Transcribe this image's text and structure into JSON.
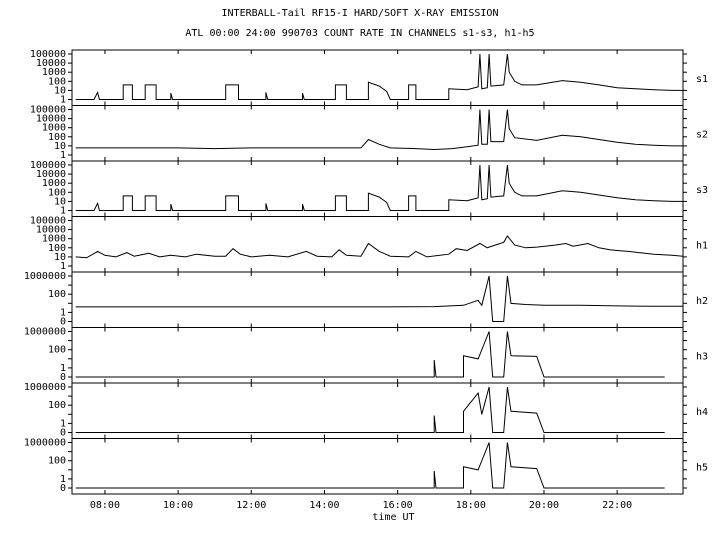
{
  "chart_data": {
    "type": "line",
    "title": "INTERBALL-Tail RF15-I HARD/SOFT X-RAY EMISSION",
    "subtitle": "ATL 00:00 24:00 990703  COUNT RATE IN CHANNELS s1-s3, h1-h5",
    "xlabel": "time UT",
    "x_ticks": [
      "08:00",
      "10:00",
      "12:00",
      "14:00",
      "16:00",
      "18:00",
      "20:00",
      "22:00"
    ],
    "xlim_hours": [
      7.1,
      23.8
    ],
    "scale": "log",
    "panels": [
      {
        "name": "s1",
        "y_ticks": [
          "100000",
          "10000",
          "1000",
          "100",
          "10",
          "1"
        ],
        "series": [
          [
            7.2,
            1
          ],
          [
            7.7,
            1
          ],
          [
            7.8,
            6
          ],
          [
            7.85,
            1
          ],
          [
            8.5,
            1
          ],
          [
            8.5,
            40
          ],
          [
            8.75,
            40
          ],
          [
            8.75,
            1
          ],
          [
            9.1,
            1
          ],
          [
            9.1,
            40
          ],
          [
            9.4,
            40
          ],
          [
            9.4,
            1
          ],
          [
            9.8,
            1
          ],
          [
            9.8,
            5
          ],
          [
            9.85,
            1
          ],
          [
            11.3,
            1
          ],
          [
            11.3,
            40
          ],
          [
            11.65,
            40
          ],
          [
            11.65,
            1
          ],
          [
            12.4,
            1
          ],
          [
            12.4,
            6
          ],
          [
            12.45,
            1
          ],
          [
            13.4,
            1
          ],
          [
            13.4,
            5
          ],
          [
            13.45,
            1
          ],
          [
            14.3,
            1
          ],
          [
            14.3,
            40
          ],
          [
            14.6,
            40
          ],
          [
            14.6,
            1
          ],
          [
            15.2,
            1
          ],
          [
            15.2,
            80
          ],
          [
            15.5,
            30
          ],
          [
            15.7,
            8
          ],
          [
            15.8,
            1
          ],
          [
            16.3,
            1
          ],
          [
            16.3,
            40
          ],
          [
            16.5,
            40
          ],
          [
            16.5,
            1
          ],
          [
            17.4,
            1
          ],
          [
            17.4,
            15
          ],
          [
            17.9,
            12
          ],
          [
            18.2,
            25
          ],
          [
            18.25,
            100000
          ],
          [
            18.3,
            15
          ],
          [
            18.45,
            20
          ],
          [
            18.5,
            100000
          ],
          [
            18.55,
            30
          ],
          [
            18.9,
            40
          ],
          [
            19.0,
            100000
          ],
          [
            19.05,
            1000
          ],
          [
            19.2,
            100
          ],
          [
            19.4,
            40
          ],
          [
            19.8,
            40
          ],
          [
            20.5,
            120
          ],
          [
            21.0,
            80
          ],
          [
            21.5,
            40
          ],
          [
            22.0,
            20
          ],
          [
            22.5,
            15
          ],
          [
            23.0,
            12
          ],
          [
            23.5,
            10
          ],
          [
            23.8,
            10
          ]
        ]
      },
      {
        "name": "s2",
        "y_ticks": [
          "100000",
          "10000",
          "1000",
          "100",
          "10",
          "1"
        ],
        "series": [
          [
            7.2,
            6
          ],
          [
            8.0,
            6
          ],
          [
            9.0,
            6
          ],
          [
            10.0,
            6
          ],
          [
            11.0,
            5
          ],
          [
            12.0,
            6
          ],
          [
            13.0,
            6
          ],
          [
            14.0,
            6
          ],
          [
            15.0,
            6
          ],
          [
            15.2,
            50
          ],
          [
            15.5,
            15
          ],
          [
            15.8,
            6
          ],
          [
            16.5,
            5
          ],
          [
            17.0,
            4
          ],
          [
            17.5,
            5
          ],
          [
            17.9,
            8
          ],
          [
            18.2,
            12
          ],
          [
            18.25,
            100000
          ],
          [
            18.3,
            15
          ],
          [
            18.45,
            15
          ],
          [
            18.5,
            100000
          ],
          [
            18.55,
            30
          ],
          [
            18.9,
            30
          ],
          [
            19.0,
            100000
          ],
          [
            19.05,
            800
          ],
          [
            19.2,
            80
          ],
          [
            19.8,
            40
          ],
          [
            20.5,
            150
          ],
          [
            21.0,
            100
          ],
          [
            21.5,
            50
          ],
          [
            22.0,
            25
          ],
          [
            22.5,
            15
          ],
          [
            23.0,
            12
          ],
          [
            23.5,
            10
          ],
          [
            23.8,
            10
          ]
        ]
      },
      {
        "name": "s3",
        "y_ticks": [
          "100000",
          "10000",
          "1000",
          "100",
          "10",
          "1"
        ],
        "series": [
          [
            7.2,
            1
          ],
          [
            7.7,
            1
          ],
          [
            7.8,
            6
          ],
          [
            7.85,
            1
          ],
          [
            8.5,
            1
          ],
          [
            8.5,
            40
          ],
          [
            8.75,
            40
          ],
          [
            8.75,
            1
          ],
          [
            9.1,
            1
          ],
          [
            9.1,
            40
          ],
          [
            9.4,
            40
          ],
          [
            9.4,
            1
          ],
          [
            9.8,
            1
          ],
          [
            9.8,
            5
          ],
          [
            9.85,
            1
          ],
          [
            11.3,
            1
          ],
          [
            11.3,
            40
          ],
          [
            11.65,
            40
          ],
          [
            11.65,
            1
          ],
          [
            12.4,
            1
          ],
          [
            12.4,
            6
          ],
          [
            12.45,
            1
          ],
          [
            13.4,
            1
          ],
          [
            13.4,
            5
          ],
          [
            13.45,
            1
          ],
          [
            14.3,
            1
          ],
          [
            14.3,
            40
          ],
          [
            14.6,
            40
          ],
          [
            14.6,
            1
          ],
          [
            15.2,
            1
          ],
          [
            15.2,
            80
          ],
          [
            15.5,
            30
          ],
          [
            15.7,
            8
          ],
          [
            15.8,
            1
          ],
          [
            16.3,
            1
          ],
          [
            16.3,
            40
          ],
          [
            16.5,
            40
          ],
          [
            16.5,
            1
          ],
          [
            17.4,
            1
          ],
          [
            17.4,
            15
          ],
          [
            17.9,
            12
          ],
          [
            18.2,
            25
          ],
          [
            18.25,
            100000
          ],
          [
            18.3,
            15
          ],
          [
            18.45,
            20
          ],
          [
            18.5,
            100000
          ],
          [
            18.55,
            30
          ],
          [
            18.9,
            40
          ],
          [
            19.0,
            100000
          ],
          [
            19.05,
            1000
          ],
          [
            19.2,
            100
          ],
          [
            19.4,
            40
          ],
          [
            19.8,
            40
          ],
          [
            20.5,
            150
          ],
          [
            21.0,
            100
          ],
          [
            21.5,
            50
          ],
          [
            22.0,
            25
          ],
          [
            22.5,
            15
          ],
          [
            23.0,
            12
          ],
          [
            23.5,
            10
          ],
          [
            23.8,
            10
          ]
        ]
      },
      {
        "name": "h1",
        "y_ticks": [
          "100000",
          "10000",
          "1000",
          "100",
          "10",
          "1"
        ],
        "series": [
          [
            7.2,
            10
          ],
          [
            7.5,
            8
          ],
          [
            7.8,
            40
          ],
          [
            8.0,
            15
          ],
          [
            8.3,
            10
          ],
          [
            8.6,
            30
          ],
          [
            8.8,
            12
          ],
          [
            9.2,
            25
          ],
          [
            9.5,
            10
          ],
          [
            9.8,
            15
          ],
          [
            10.2,
            10
          ],
          [
            10.5,
            20
          ],
          [
            11.0,
            12
          ],
          [
            11.3,
            12
          ],
          [
            11.5,
            80
          ],
          [
            11.7,
            20
          ],
          [
            12.0,
            10
          ],
          [
            12.5,
            15
          ],
          [
            13.0,
            10
          ],
          [
            13.5,
            40
          ],
          [
            13.8,
            12
          ],
          [
            14.2,
            10
          ],
          [
            14.4,
            60
          ],
          [
            14.6,
            15
          ],
          [
            15.0,
            12
          ],
          [
            15.2,
            300
          ],
          [
            15.5,
            40
          ],
          [
            15.8,
            12
          ],
          [
            16.3,
            10
          ],
          [
            16.5,
            40
          ],
          [
            16.8,
            10
          ],
          [
            17.4,
            20
          ],
          [
            17.6,
            80
          ],
          [
            17.9,
            50
          ],
          [
            18.25,
            300
          ],
          [
            18.45,
            100
          ],
          [
            18.5,
            120
          ],
          [
            18.9,
            400
          ],
          [
            19.0,
            2000
          ],
          [
            19.2,
            200
          ],
          [
            19.5,
            100
          ],
          [
            19.8,
            120
          ],
          [
            20.3,
            200
          ],
          [
            20.6,
            300
          ],
          [
            20.8,
            150
          ],
          [
            21.2,
            300
          ],
          [
            21.5,
            100
          ],
          [
            21.8,
            60
          ],
          [
            22.0,
            50
          ],
          [
            22.3,
            40
          ],
          [
            22.6,
            30
          ],
          [
            23.0,
            20
          ],
          [
            23.5,
            15
          ],
          [
            23.8,
            12
          ]
        ]
      },
      {
        "name": "h2",
        "y_ticks": [
          "1000000",
          "",
          "100",
          "",
          "1",
          "0"
        ],
        "series": [
          [
            7.2,
            8
          ],
          [
            9.0,
            8
          ],
          [
            11.0,
            8
          ],
          [
            13.0,
            8
          ],
          [
            15.0,
            8
          ],
          [
            17.0,
            9
          ],
          [
            17.8,
            15
          ],
          [
            18.2,
            100
          ],
          [
            18.3,
            15
          ],
          [
            18.5,
            1000000
          ],
          [
            18.6,
            0
          ],
          [
            18.9,
            0
          ],
          [
            19.0,
            1000000
          ],
          [
            19.1,
            30
          ],
          [
            19.5,
            20
          ],
          [
            20.0,
            15
          ],
          [
            21.0,
            15
          ],
          [
            22.0,
            12
          ],
          [
            23.0,
            10
          ],
          [
            23.8,
            10
          ]
        ]
      },
      {
        "name": "h3",
        "y_ticks": [
          "1000000",
          "",
          "100",
          "",
          "1",
          "0"
        ],
        "series": [
          [
            7.2,
            0
          ],
          [
            17.0,
            0
          ],
          [
            17.0,
            20
          ],
          [
            17.05,
            0
          ],
          [
            17.8,
            0
          ],
          [
            17.8,
            100
          ],
          [
            18.2,
            30
          ],
          [
            18.5,
            1000000
          ],
          [
            18.6,
            0
          ],
          [
            18.9,
            0
          ],
          [
            19.0,
            1000000
          ],
          [
            19.1,
            100
          ],
          [
            19.8,
            80
          ],
          [
            20.0,
            0
          ],
          [
            23.3,
            0
          ]
        ]
      },
      {
        "name": "h4",
        "y_ticks": [
          "1000000",
          "",
          "100",
          "",
          "1",
          "0"
        ],
        "series": [
          [
            7.2,
            0
          ],
          [
            17.0,
            0
          ],
          [
            17.0,
            20
          ],
          [
            17.05,
            0
          ],
          [
            17.8,
            0
          ],
          [
            17.8,
            100
          ],
          [
            18.2,
            100000
          ],
          [
            18.3,
            30
          ],
          [
            18.5,
            1000000
          ],
          [
            18.6,
            0
          ],
          [
            18.9,
            0
          ],
          [
            19.0,
            1000000
          ],
          [
            19.1,
            100
          ],
          [
            19.8,
            50
          ],
          [
            20.0,
            0
          ],
          [
            23.3,
            0
          ]
        ]
      },
      {
        "name": "h5",
        "y_ticks": [
          "1000000",
          "",
          "100",
          "",
          "1",
          "0"
        ],
        "series": [
          [
            7.2,
            0
          ],
          [
            17.0,
            0
          ],
          [
            17.0,
            20
          ],
          [
            17.05,
            0
          ],
          [
            17.8,
            0
          ],
          [
            17.8,
            100
          ],
          [
            18.2,
            30
          ],
          [
            18.5,
            1000000
          ],
          [
            18.6,
            0
          ],
          [
            18.9,
            0
          ],
          [
            19.0,
            1000000
          ],
          [
            19.1,
            100
          ],
          [
            19.8,
            50
          ],
          [
            20.0,
            0
          ],
          [
            23.3,
            0
          ]
        ]
      }
    ]
  }
}
